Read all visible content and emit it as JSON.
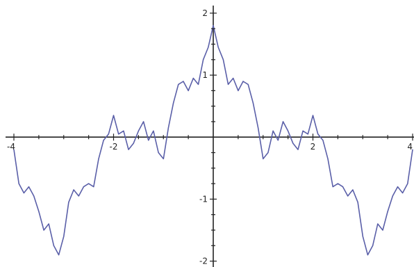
{
  "chart_data": {
    "type": "line",
    "title": "",
    "xlabel": "",
    "ylabel": "",
    "xlim": [
      -4,
      4
    ],
    "ylim": [
      -2.05,
      2.1
    ],
    "grid": false,
    "legend": "none",
    "series_color": "#5a5fa8",
    "axis_color": "#222222",
    "x_ticks": [
      {
        "value": -4,
        "label": "-4"
      },
      {
        "value": -2,
        "label": "-2"
      },
      {
        "value": 2,
        "label": "2"
      },
      {
        "value": 4,
        "label": "4"
      }
    ],
    "y_ticks": [
      {
        "value": 2,
        "label": "2"
      },
      {
        "value": 1,
        "label": "1"
      },
      {
        "value": -1,
        "label": "-1"
      },
      {
        "value": -2,
        "label": "-2"
      }
    ],
    "series": [
      {
        "x": [
          -4.0,
          -3.9,
          -3.8,
          -3.7,
          -3.6,
          -3.5,
          -3.4,
          -3.3,
          -3.2,
          -3.1,
          -3.0,
          -2.9,
          -2.8,
          -2.7,
          -2.6,
          -2.5,
          -2.4,
          -2.3,
          -2.2,
          -2.1,
          -2.0,
          -1.9,
          -1.8,
          -1.7,
          -1.6,
          -1.5,
          -1.4,
          -1.3,
          -1.2,
          -1.1,
          -1.0,
          -0.9,
          -0.8,
          -0.7,
          -0.6,
          -0.5,
          -0.4,
          -0.3,
          -0.2,
          -0.1,
          0.0,
          0.1,
          0.2,
          0.3,
          0.4,
          0.5,
          0.6,
          0.7,
          0.8,
          0.9,
          1.0,
          1.1,
          1.2,
          1.3,
          1.4,
          1.5,
          1.6,
          1.7,
          1.8,
          1.9,
          2.0,
          2.1,
          2.2,
          2.3,
          2.4,
          2.5,
          2.6,
          2.7,
          2.8,
          2.9,
          3.0,
          3.1,
          3.2,
          3.3,
          3.4,
          3.5,
          3.6,
          3.7,
          3.8,
          3.9,
          4.0
        ],
        "y": [
          -0.2,
          -0.75,
          -0.9,
          -0.8,
          -0.95,
          -1.2,
          -1.5,
          -1.4,
          -1.75,
          -1.9,
          -1.6,
          -1.05,
          -0.85,
          -0.95,
          -0.8,
          -0.75,
          -0.8,
          -0.35,
          -0.05,
          0.05,
          0.35,
          0.05,
          0.1,
          -0.2,
          -0.1,
          0.1,
          0.25,
          -0.05,
          0.1,
          -0.25,
          -0.35,
          0.15,
          0.55,
          0.85,
          0.9,
          0.75,
          0.95,
          0.85,
          1.25,
          1.45,
          1.8,
          1.45,
          1.25,
          0.85,
          0.95,
          0.75,
          0.9,
          0.85,
          0.55,
          0.15,
          -0.35,
          -0.25,
          0.1,
          -0.05,
          0.25,
          0.1,
          -0.1,
          -0.2,
          0.1,
          0.05,
          0.35,
          0.05,
          -0.05,
          -0.35,
          -0.8,
          -0.75,
          -0.8,
          -0.95,
          -0.85,
          -1.05,
          -1.6,
          -1.9,
          -1.75,
          -1.4,
          -1.5,
          -1.2,
          -0.95,
          -0.8,
          -0.9,
          -0.75,
          -0.2
        ]
      }
    ]
  }
}
